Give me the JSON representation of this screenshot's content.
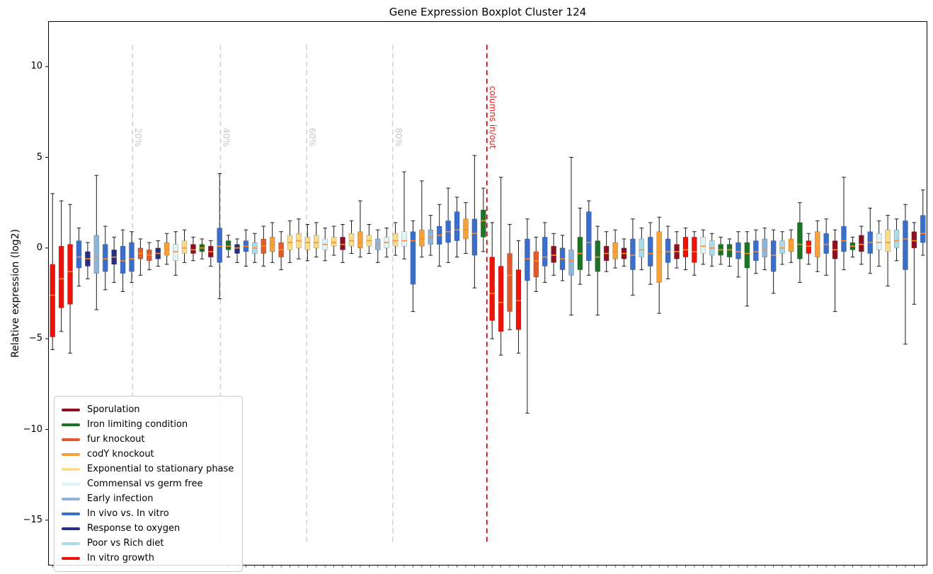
{
  "title": "Gene Expression Boxplot Cluster 124",
  "chart_data": {
    "type": "boxplot",
    "title": "Gene Expression Boxplot Cluster 124",
    "xlabel": "",
    "ylabel": "Relative expression (log2)",
    "ylim": [
      -17.5,
      12.5
    ],
    "grid": false,
    "xticklabels_visible": false,
    "legend_position": "lower left",
    "median_color": "#ff8b26",
    "whisker_color": "#1a1a1a",
    "yticks": [
      {
        "v": 10,
        "label": "10"
      },
      {
        "v": 5,
        "label": "5"
      },
      {
        "v": 0,
        "label": "0"
      },
      {
        "v": -5,
        "label": "−5"
      },
      {
        "v": -10,
        "label": "−10"
      },
      {
        "v": -15,
        "label": "−15"
      }
    ],
    "categories": [
      {
        "name": "Sporulation",
        "color": "#8d1021"
      },
      {
        "name": "Iron limiting condition",
        "color": "#1d7324"
      },
      {
        "name": "fur knockout",
        "color": "#e05a2b"
      },
      {
        "name": "codY knockout",
        "color": "#f6a23a"
      },
      {
        "name": "Exponential to stationary phase",
        "color": "#f8dd8a"
      },
      {
        "name": "Commensal vs germ free",
        "color": "#e0f4f8"
      },
      {
        "name": "Early infection",
        "color": "#8fb4d9"
      },
      {
        "name": "In vivo vs. In vitro",
        "color": "#3a6ecb"
      },
      {
        "name": "Response to oxygen",
        "color": "#27307e"
      },
      {
        "name": "Poor vs Rich diet",
        "color": "#aadbe8"
      },
      {
        "name": "In vitro growth",
        "color": "#ef1208"
      }
    ],
    "vlines": [
      {
        "name": "percent-20-line",
        "pos": 9.1,
        "label": "20%",
        "color": "#cfcfcf",
        "label_color": "#c6c6c6",
        "style": "dashed",
        "label_y": 6.1
      },
      {
        "name": "percent-40-line",
        "pos": 19.1,
        "label": "40%",
        "color": "#cfcfcf",
        "label_color": "#c6c6c6",
        "style": "dashed",
        "label_y": 6.1
      },
      {
        "name": "percent-60-line",
        "pos": 28.9,
        "label": "60%",
        "color": "#cfcfcf",
        "label_color": "#c6c6c6",
        "style": "dashed",
        "label_y": 6.1
      },
      {
        "name": "percent-80-line",
        "pos": 38.7,
        "label": "80%",
        "color": "#cfcfcf",
        "label_color": "#c6c6c6",
        "style": "dashed",
        "label_y": 6.1
      },
      {
        "name": "columns-in-out-line",
        "pos": 49.4,
        "label": "columns in/out",
        "color": "#dd0000",
        "label_color": "#dd2222",
        "style": "dashed",
        "label_y": 7.2
      }
    ],
    "box_fields": [
      "category_index",
      "median",
      "q1",
      "q3",
      "whisker_low",
      "whisker_high"
    ],
    "boxes": [
      [
        10,
        -2.6,
        -4.9,
        -0.9,
        -5.6,
        3.0
      ],
      [
        10,
        -1.7,
        -3.3,
        0.1,
        -4.6,
        2.6
      ],
      [
        10,
        -1.3,
        -3.1,
        0.2,
        -5.8,
        2.4
      ],
      [
        7,
        -0.5,
        -1.1,
        0.4,
        -2.1,
        1.1
      ],
      [
        8,
        -0.6,
        -1.0,
        -0.2,
        -1.7,
        0.3
      ],
      [
        6,
        -0.5,
        -1.4,
        0.7,
        -3.4,
        4.0
      ],
      [
        7,
        -0.6,
        -1.3,
        0.2,
        -2.3,
        1.2
      ],
      [
        8,
        -0.5,
        -0.9,
        -0.1,
        -1.9,
        0.6
      ],
      [
        7,
        -0.7,
        -1.4,
        0.1,
        -2.4,
        1.0
      ],
      [
        7,
        -0.6,
        -1.3,
        0.3,
        -1.9,
        0.9
      ],
      [
        2,
        -0.3,
        -0.6,
        0.0,
        -1.5,
        0.5
      ],
      [
        2,
        -0.4,
        -0.7,
        -0.1,
        -1.2,
        0.3
      ],
      [
        8,
        -0.3,
        -0.6,
        0.0,
        -1.0,
        0.4
      ],
      [
        3,
        -0.1,
        -0.4,
        0.3,
        -0.9,
        0.8
      ],
      [
        5,
        -0.2,
        -0.7,
        0.2,
        -1.5,
        0.9
      ],
      [
        4,
        0.0,
        -0.3,
        0.4,
        -0.8,
        1.0
      ],
      [
        0,
        -0.1,
        -0.3,
        0.2,
        -0.7,
        0.6
      ],
      [
        1,
        0.0,
        -0.2,
        0.2,
        -0.6,
        0.5
      ],
      [
        0,
        -0.2,
        -0.5,
        0.1,
        -1.0,
        0.4
      ],
      [
        7,
        0.1,
        -0.8,
        1.1,
        -2.8,
        4.1
      ],
      [
        1,
        0.1,
        -0.1,
        0.4,
        -0.5,
        0.7
      ],
      [
        8,
        0.0,
        -0.3,
        0.2,
        -0.8,
        0.5
      ],
      [
        7,
        0.1,
        -0.2,
        0.4,
        -1.0,
        1.0
      ],
      [
        9,
        0.0,
        -0.3,
        0.3,
        -0.8,
        0.8
      ],
      [
        2,
        0.1,
        -0.3,
        0.5,
        -1.0,
        1.2
      ],
      [
        3,
        0.2,
        -0.2,
        0.6,
        -0.8,
        1.4
      ],
      [
        2,
        -0.1,
        -0.5,
        0.3,
        -1.2,
        0.9
      ],
      [
        4,
        0.3,
        -0.1,
        0.7,
        -0.8,
        1.5
      ],
      [
        4,
        0.4,
        0.0,
        0.8,
        -0.6,
        1.6
      ],
      [
        4,
        0.3,
        -0.1,
        0.6,
        -0.7,
        1.3
      ],
      [
        4,
        0.3,
        0.0,
        0.7,
        -0.5,
        1.4
      ],
      [
        5,
        0.2,
        -0.1,
        0.5,
        -0.7,
        1.1
      ],
      [
        4,
        0.3,
        0.1,
        0.6,
        -0.4,
        1.2
      ],
      [
        0,
        0.2,
        -0.1,
        0.6,
        -0.8,
        1.3
      ],
      [
        4,
        0.4,
        0.1,
        0.8,
        -0.3,
        1.5
      ],
      [
        3,
        0.3,
        0.0,
        0.9,
        -0.5,
        2.6
      ],
      [
        4,
        0.4,
        0.1,
        0.7,
        -0.3,
        1.3
      ],
      [
        6,
        0.2,
        -0.1,
        0.5,
        -0.8,
        1.0
      ],
      [
        5,
        0.3,
        0.0,
        0.6,
        -0.5,
        1.1
      ],
      [
        4,
        0.4,
        0.1,
        0.8,
        -0.4,
        1.4
      ],
      [
        5,
        0.4,
        0.1,
        0.9,
        -0.6,
        4.2
      ],
      [
        7,
        0.4,
        -2.0,
        0.9,
        -3.5,
        1.5
      ],
      [
        3,
        0.5,
        0.1,
        1.0,
        -0.5,
        3.7
      ],
      [
        6,
        0.6,
        0.2,
        1.0,
        -0.4,
        1.8
      ],
      [
        7,
        0.7,
        0.2,
        1.2,
        -1.0,
        2.4
      ],
      [
        7,
        0.9,
        0.3,
        1.5,
        -0.8,
        3.3
      ],
      [
        7,
        1.0,
        0.4,
        2.0,
        -0.5,
        2.8
      ],
      [
        3,
        1.0,
        0.5,
        1.6,
        -0.3,
        2.5
      ],
      [
        7,
        0.8,
        -0.4,
        1.6,
        -2.2,
        5.1
      ],
      [
        1,
        1.5,
        0.6,
        2.1,
        -0.2,
        3.3
      ],
      [
        10,
        -2.5,
        -4.0,
        -0.5,
        -5.0,
        1.4
      ],
      [
        10,
        -3.0,
        -4.6,
        -1.0,
        -5.9,
        3.9
      ],
      [
        2,
        -1.5,
        -3.5,
        -0.3,
        -4.5,
        1.3
      ],
      [
        10,
        -2.9,
        -4.5,
        -1.2,
        -5.8,
        0.4
      ],
      [
        7,
        -0.6,
        -1.8,
        0.5,
        -9.1,
        1.6
      ],
      [
        2,
        -0.7,
        -1.6,
        -0.2,
        -2.4,
        0.6
      ],
      [
        7,
        -0.5,
        -1.0,
        0.6,
        -1.9,
        1.4
      ],
      [
        0,
        -0.4,
        -0.8,
        0.1,
        -1.5,
        0.8
      ],
      [
        7,
        -0.6,
        -1.2,
        0.0,
        -1.8,
        0.7
      ],
      [
        6,
        -0.7,
        -1.5,
        -0.1,
        -3.7,
        5.0
      ],
      [
        1,
        -0.3,
        -1.2,
        0.6,
        -2.0,
        2.2
      ],
      [
        7,
        0.3,
        -0.7,
        2.0,
        -1.5,
        2.6
      ],
      [
        1,
        -0.5,
        -1.3,
        0.4,
        -3.7,
        1.2
      ],
      [
        0,
        -0.3,
        -0.7,
        0.1,
        -1.3,
        0.9
      ],
      [
        3,
        -0.2,
        -0.6,
        0.3,
        -1.1,
        1.0
      ],
      [
        0,
        -0.3,
        -0.6,
        0.0,
        -1.0,
        0.5
      ],
      [
        7,
        -0.4,
        -1.2,
        0.5,
        -2.6,
        1.6
      ],
      [
        9,
        -0.1,
        -0.5,
        0.5,
        -1.2,
        1.1
      ],
      [
        7,
        -0.3,
        -1.0,
        0.6,
        -2.0,
        1.4
      ],
      [
        3,
        -0.2,
        -1.9,
        0.9,
        -3.6,
        1.7
      ],
      [
        7,
        -0.2,
        -0.8,
        0.5,
        -1.7,
        1.2
      ],
      [
        0,
        -0.2,
        -0.6,
        0.2,
        -1.1,
        0.9
      ],
      [
        10,
        -0.1,
        -0.5,
        0.6,
        -1.2,
        1.1
      ],
      [
        10,
        -0.2,
        -0.8,
        0.6,
        -1.5,
        0.9
      ],
      [
        5,
        0.1,
        -0.3,
        0.6,
        -0.9,
        1.0
      ],
      [
        9,
        0.0,
        -0.4,
        0.4,
        -1.0,
        0.8
      ],
      [
        1,
        -0.1,
        -0.4,
        0.2,
        -0.9,
        0.6
      ],
      [
        1,
        -0.1,
        -0.5,
        0.2,
        -1.0,
        0.5
      ],
      [
        7,
        -0.2,
        -0.6,
        0.3,
        -1.6,
        0.9
      ],
      [
        1,
        -0.3,
        -1.1,
        0.3,
        -3.2,
        0.9
      ],
      [
        7,
        -0.2,
        -0.7,
        0.4,
        -1.4,
        1.0
      ],
      [
        6,
        -0.1,
        -0.5,
        0.5,
        -1.2,
        1.1
      ],
      [
        7,
        -0.4,
        -1.3,
        0.4,
        -2.5,
        1.0
      ],
      [
        9,
        0.0,
        -0.3,
        0.4,
        -0.9,
        0.9
      ],
      [
        3,
        0.1,
        -0.2,
        0.5,
        -0.8,
        1.0
      ],
      [
        1,
        0.2,
        -0.6,
        1.4,
        -1.9,
        2.5
      ],
      [
        10,
        0.1,
        -0.3,
        0.4,
        -0.9,
        0.8
      ],
      [
        3,
        0.0,
        -0.5,
        0.9,
        -1.3,
        1.5
      ],
      [
        7,
        0.2,
        -0.3,
        0.8,
        -1.5,
        1.6
      ],
      [
        0,
        -0.1,
        -0.6,
        0.4,
        -3.5,
        1.0
      ],
      [
        7,
        0.4,
        -0.2,
        1.2,
        -1.2,
        3.9
      ],
      [
        1,
        0.1,
        -0.1,
        0.3,
        -0.5,
        0.6
      ],
      [
        0,
        0.2,
        -0.2,
        0.7,
        -0.9,
        1.2
      ],
      [
        7,
        0.3,
        -0.3,
        0.9,
        -1.4,
        2.2
      ],
      [
        5,
        0.3,
        -0.1,
        0.8,
        -1.0,
        1.5
      ],
      [
        4,
        0.3,
        -0.2,
        1.0,
        -2.1,
        1.8
      ],
      [
        9,
        0.4,
        0.0,
        1.0,
        -0.7,
        1.6
      ],
      [
        7,
        0.5,
        -1.2,
        1.5,
        -5.3,
        2.4
      ],
      [
        0,
        0.4,
        0.0,
        0.9,
        -3.1,
        1.4
      ],
      [
        7,
        0.8,
        0.3,
        1.8,
        -0.4,
        3.2
      ]
    ]
  }
}
